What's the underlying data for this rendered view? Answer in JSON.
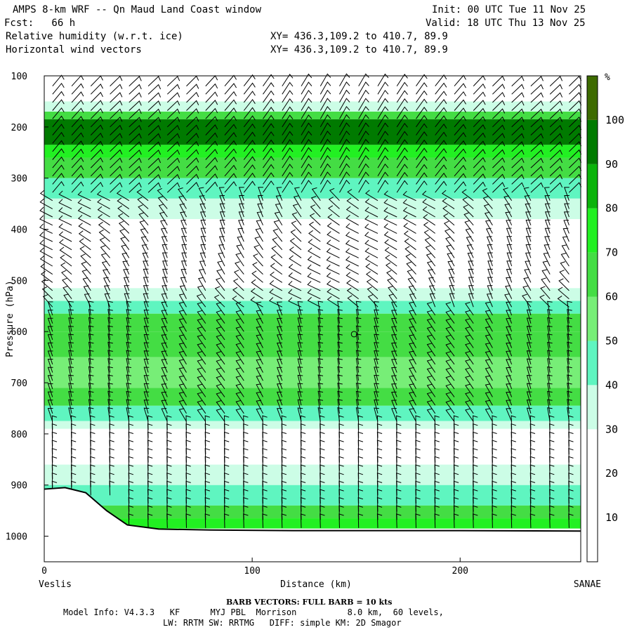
{
  "header": {
    "title": "AMPS 8-km WRF -- Qn Maud Land Coast window",
    "fcst": "Fcst:   66 h",
    "init": "Init: 00 UTC Tue 11 Nov 25",
    "valid": "Valid: 18 UTC Thu 13 Nov 25",
    "field1": "Relative humidity (w.r.t. ice)",
    "field2": "Horizontal wind vectors",
    "xy1": "XY= 436.3,109.2 to 410.7, 89.9",
    "xy2": "XY= 436.3,109.2 to 410.7, 89.9"
  },
  "footer": {
    "barb": "BARB VECTORS:  FULL BARB = 10 kts",
    "model1": "Model Info: V4.3.3   KF      MYJ PBL  Morrison          8.0 km,  60 levels,",
    "model2": "LW: RRTM SW: RRTMG   DIFF: simple KM: 2D Smagor"
  },
  "chart_data": {
    "type": "heatmap",
    "title": "Relative humidity (w.r.t. ice)",
    "overlay": "Horizontal wind vectors",
    "xlabel": "Distance (km)",
    "ylabel": "Pressure (hPa)",
    "x_left_label": "Veslis",
    "x_right_label": "SANAE",
    "xlim": [
      0,
      258
    ],
    "ylim": [
      1050,
      100
    ],
    "x_ticks": [
      0,
      100,
      200
    ],
    "y_ticks": [
      100,
      200,
      300,
      400,
      500,
      600,
      700,
      800,
      900,
      1000
    ],
    "colorbar": {
      "unit": "%",
      "levels": [
        10,
        20,
        30,
        40,
        50,
        60,
        70,
        80,
        90,
        100
      ],
      "colors": [
        "#ffffff",
        "#ffffff",
        "#ffffff",
        "#ccfde6",
        "#5ff5c0",
        "#77ee77",
        "#44dd44",
        "#22f022",
        "#0bb30b",
        "#007a00",
        "#3d6b00"
      ]
    },
    "rh_layers": [
      {
        "p_top": 150,
        "p_bot": 170,
        "rh": 35
      },
      {
        "p_top": 170,
        "p_bot": 185,
        "rh": 65
      },
      {
        "p_top": 185,
        "p_bot": 235,
        "rh": 95
      },
      {
        "p_top": 235,
        "p_bot": 260,
        "rh": 75
      },
      {
        "p_top": 260,
        "p_bot": 300,
        "rh": 62
      },
      {
        "p_top": 300,
        "p_bot": 340,
        "rh": 45
      },
      {
        "p_top": 340,
        "p_bot": 380,
        "rh": 35
      },
      {
        "p_top": 515,
        "p_bot": 540,
        "rh": 35
      },
      {
        "p_top": 540,
        "p_bot": 565,
        "rh": 45
      },
      {
        "p_top": 565,
        "p_bot": 600,
        "rh": 60
      },
      {
        "p_top": 600,
        "p_bot": 650,
        "rh": 68
      },
      {
        "p_top": 650,
        "p_bot": 710,
        "rh": 55
      },
      {
        "p_top": 710,
        "p_bot": 745,
        "rh": 62
      },
      {
        "p_top": 745,
        "p_bot": 775,
        "rh": 42
      },
      {
        "p_top": 775,
        "p_bot": 790,
        "rh": 32
      },
      {
        "p_top": 860,
        "p_bot": 900,
        "rh": 35
      },
      {
        "p_top": 900,
        "p_bot": 940,
        "rh": 45
      },
      {
        "p_top": 940,
        "p_bot": 965,
        "rh": 60
      },
      {
        "p_top": 965,
        "p_bot": 985,
        "rh": 75
      }
    ],
    "terrain": [
      {
        "x": 0,
        "p": 908
      },
      {
        "x": 10,
        "p": 905
      },
      {
        "x": 20,
        "p": 915
      },
      {
        "x": 30,
        "p": 950
      },
      {
        "x": 40,
        "p": 978
      },
      {
        "x": 55,
        "p": 986
      },
      {
        "x": 80,
        "p": 988
      },
      {
        "x": 120,
        "p": 989
      },
      {
        "x": 200,
        "p": 989
      },
      {
        "x": 258,
        "p": 990
      }
    ],
    "calm_marker": {
      "x": 149,
      "p": 605
    }
  }
}
